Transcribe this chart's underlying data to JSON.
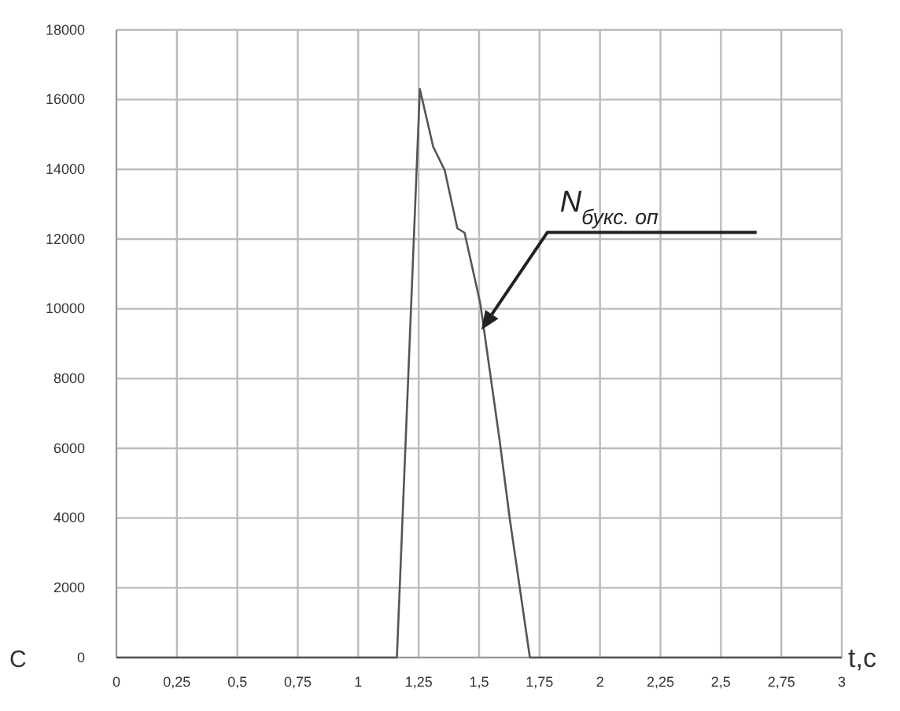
{
  "chart_data": {
    "type": "line",
    "xlabel": "t,c",
    "ylabel": "C",
    "x": [
      0,
      1.16,
      1.255,
      1.31,
      1.358,
      1.41,
      1.44,
      1.505,
      1.585,
      1.627,
      1.71,
      3
    ],
    "series": [
      {
        "color": "#555555",
        "values": [
          0,
          0,
          16300,
          14650,
          13970,
          12310,
          12180,
          10150,
          6220,
          3970,
          0,
          0
        ]
      }
    ],
    "xlim": [
      0,
      3
    ],
    "ylim": [
      0,
      18000
    ],
    "xticks": [
      0,
      {
        "value": 0.25,
        "label": "0,25"
      },
      {
        "value": 0.5,
        "label": "0,5"
      },
      {
        "value": 0.75,
        "label": "0,75"
      },
      1,
      {
        "value": 1.25,
        "label": "1,25"
      },
      {
        "value": 1.5,
        "label": "1,5"
      },
      {
        "value": 1.75,
        "label": "1,75"
      },
      2,
      {
        "value": 2.25,
        "label": "2,25"
      },
      {
        "value": 2.5,
        "label": "2,5"
      },
      {
        "value": 2.75,
        "label": "2,75"
      },
      3
    ],
    "yticks": [
      0,
      2000,
      4000,
      6000,
      8000,
      10000,
      12000,
      14000,
      16000,
      18000
    ],
    "grid": true,
    "marker": "none",
    "line_style": "solid",
    "annotations": [
      "N$_{букс. оп}$"
    ]
  }
}
